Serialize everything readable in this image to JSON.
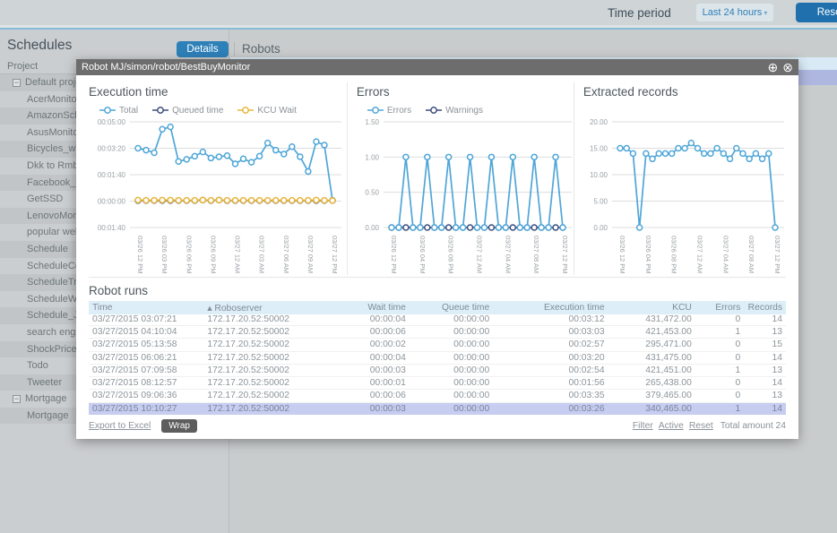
{
  "topbar": {
    "time_period_label": "Time period",
    "range_value": "Last 24 hours",
    "caret": "▾",
    "reset_label": "Reset Filters"
  },
  "page": {
    "schedules_title": "Schedules",
    "tabs": {
      "details": "Details",
      "robots": "Robots"
    }
  },
  "sidebar": {
    "header": "Project",
    "rows": [
      {
        "label": "Default project",
        "type": "group"
      },
      {
        "label": "AcerMonitors",
        "type": "item"
      },
      {
        "label": "AmazonSched",
        "type": "item"
      },
      {
        "label": "AsusMonitors",
        "type": "item"
      },
      {
        "label": "Bicycles_with_n",
        "type": "item"
      },
      {
        "label": "Dkk to Rmb sch",
        "type": "item"
      },
      {
        "label": "Facebook_Gro",
        "type": "item"
      },
      {
        "label": "GetSSD",
        "type": "item"
      },
      {
        "label": "LenovoMonitor",
        "type": "item"
      },
      {
        "label": "popular websit",
        "type": "item"
      },
      {
        "label": "Schedule",
        "type": "item"
      },
      {
        "label": "ScheduleConv",
        "type": "item"
      },
      {
        "label": "ScheduleTrave",
        "type": "item"
      },
      {
        "label": "ScheduleWithIn",
        "type": "item"
      },
      {
        "label": "Schedule_JSOI",
        "type": "item"
      },
      {
        "label": "search engines",
        "type": "item"
      },
      {
        "label": "ShockPrices",
        "type": "item"
      },
      {
        "label": "Todo",
        "type": "item"
      },
      {
        "label": "Tweeter",
        "type": "item"
      },
      {
        "label": "Mortgage",
        "type": "group"
      },
      {
        "label": "Mortgage",
        "type": "item"
      }
    ]
  },
  "modal": {
    "title": "Robot MJ/simon/robot/BestBuyMonitor",
    "plus_icon": "⊕",
    "close_icon": "⊗",
    "table": {
      "heading": "Robot runs",
      "headers": [
        "Time",
        "Roboserver",
        "Wait time",
        "Queue time",
        "Execution time",
        "KCU",
        "Errors",
        "Records"
      ],
      "sort_icon": "▴",
      "sort_column_index": 1,
      "partial_row": [
        "03/27/2015 03:07:21",
        "172.17.20.52:50002",
        "00:00:04",
        "00:00:00",
        "00:03:12",
        "431,472.00",
        "0",
        "14"
      ],
      "rows": [
        [
          "03/27/2015 04:10:04",
          "172.17.20.52:50002",
          "00:00:06",
          "00:00:00",
          "00:03:03",
          "421,453.00",
          "1",
          "13"
        ],
        [
          "03/27/2015 05:13:58",
          "172.17.20.52:50002",
          "00:00:02",
          "00:00:00",
          "00:02:57",
          "295,471.00",
          "0",
          "15"
        ],
        [
          "03/27/2015 06:06:21",
          "172.17.20.52:50002",
          "00:00:04",
          "00:00:00",
          "00:03:20",
          "431,475.00",
          "0",
          "14"
        ],
        [
          "03/27/2015 07:09:58",
          "172.17.20.52:50002",
          "00:00:03",
          "00:00:00",
          "00:02:54",
          "421,451.00",
          "1",
          "13"
        ],
        [
          "03/27/2015 08:12:57",
          "172.17.20.52:50002",
          "00:00:01",
          "00:00:00",
          "00:01:56",
          "265,438.00",
          "0",
          "14"
        ],
        [
          "03/27/2015 09:06:36",
          "172.17.20.52:50002",
          "00:00:06",
          "00:00:00",
          "00:03:35",
          "379,465.00",
          "0",
          "13"
        ],
        [
          "03/27/2015 10:10:27",
          "172.17.20.52:50002",
          "00:00:03",
          "00:00:00",
          "00:03:26",
          "340,465.00",
          "1",
          "14"
        ]
      ],
      "selected_row_index": 6
    },
    "footer": {
      "export": "Export to Excel",
      "wrap": "Wrap",
      "links": [
        "Filter",
        "Active",
        "Reset"
      ],
      "total": "Total amount 24"
    }
  },
  "chart_data": [
    {
      "type": "line",
      "title": "Execution time",
      "legend": true,
      "mleft": 46,
      "ylim": [
        -100,
        300
      ],
      "y_ticks": [
        {
          "v": 300,
          "label": "00:05:00"
        },
        {
          "v": 200,
          "label": "00:03:20"
        },
        {
          "v": 100,
          "label": "00:01:40"
        },
        {
          "v": 0,
          "label": "00:00:00"
        },
        {
          "v": -100,
          "label": "00:01:40"
        }
      ],
      "tick_every": 3,
      "x_ticks": [
        "03/26 12 PM",
        "03/26 03 PM",
        "03/26 06 PM",
        "03/26 09 PM",
        "03/27 12 AM",
        "03/27 03 AM",
        "03/27 06 AM",
        "03/27 09 AM",
        "03/27 12 PM"
      ],
      "series": [
        {
          "name": "Total",
          "color": "#4fa6d8",
          "values": [
            200,
            193,
            183,
            272,
            281,
            150,
            158,
            170,
            186,
            163,
            168,
            172,
            141,
            160,
            147,
            170,
            220,
            193,
            178,
            206,
            168,
            112,
            225,
            212,
            3
          ]
        },
        {
          "name": "Queued time",
          "color": "#3d4d7d",
          "values": [
            2,
            2,
            2,
            2,
            2,
            2,
            2,
            2,
            4,
            2,
            4,
            2,
            2,
            2,
            2,
            2,
            2,
            2,
            2,
            2,
            2,
            2,
            2,
            2,
            2
          ]
        },
        {
          "name": "KCU Wait",
          "color": "#e8b63d",
          "values": [
            4,
            3,
            3,
            4,
            4,
            3,
            3,
            3,
            4,
            3,
            4,
            3,
            3,
            3,
            3,
            3,
            3,
            3,
            3,
            3,
            3,
            3,
            4,
            3,
            2
          ]
        }
      ]
    },
    {
      "type": "line",
      "title": "Errors",
      "legend": true,
      "mleft": 30,
      "ylim": [
        0,
        1.5
      ],
      "y_ticks": [
        {
          "v": 1.5,
          "label": "1.50"
        },
        {
          "v": 1.0,
          "label": "1.00"
        },
        {
          "v": 0.5,
          "label": "0.50"
        },
        {
          "v": 0,
          "label": "0.00"
        }
      ],
      "tick_every": 4,
      "x_ticks": [
        "03/26 12 PM",
        "03/26 04 PM",
        "03/26 08 PM",
        "03/27 12 AM",
        "03/27 04 AM",
        "03/27 08 AM",
        "03/27 12 PM"
      ],
      "series": [
        {
          "name": "Warnings",
          "color": "#3d4d7d",
          "values": [
            0,
            0,
            0,
            0,
            0,
            0,
            0,
            0,
            0,
            0,
            0,
            0,
            0,
            0,
            0,
            0,
            0,
            0,
            0,
            0,
            0,
            0,
            0,
            0,
            0
          ]
        },
        {
          "name": "Errors",
          "color": "#4fa6d8",
          "values": [
            0,
            0,
            1,
            0,
            0,
            1,
            0,
            0,
            1,
            0,
            0,
            1,
            0,
            0,
            1,
            0,
            0,
            1,
            0,
            0,
            1,
            0,
            0,
            1,
            0
          ]
        }
      ],
      "legend_order": [
        "Errors",
        "Warnings"
      ]
    },
    {
      "type": "line",
      "title": "Extracted records",
      "legend": false,
      "mleft": 32,
      "ylim": [
        0,
        20
      ],
      "y_ticks": [
        {
          "v": 20,
          "label": "20.00"
        },
        {
          "v": 15,
          "label": "15.00"
        },
        {
          "v": 10,
          "label": "10.00"
        },
        {
          "v": 5,
          "label": "5.00"
        },
        {
          "v": 0,
          "label": "0.00"
        }
      ],
      "tick_every": 4,
      "x_ticks": [
        "03/26 12 PM",
        "03/26 04 PM",
        "03/26 08 PM",
        "03/27 12 AM",
        "03/27 04 AM",
        "03/27 08 AM",
        "03/27 12 PM"
      ],
      "series": [
        {
          "name": "Records",
          "color": "#4fa6d8",
          "values": [
            15,
            15,
            14,
            0,
            14,
            13,
            14,
            14,
            14,
            15,
            15,
            16,
            15,
            14,
            14,
            15,
            14,
            13,
            15,
            14,
            13,
            14,
            13,
            14,
            0
          ]
        }
      ]
    }
  ]
}
